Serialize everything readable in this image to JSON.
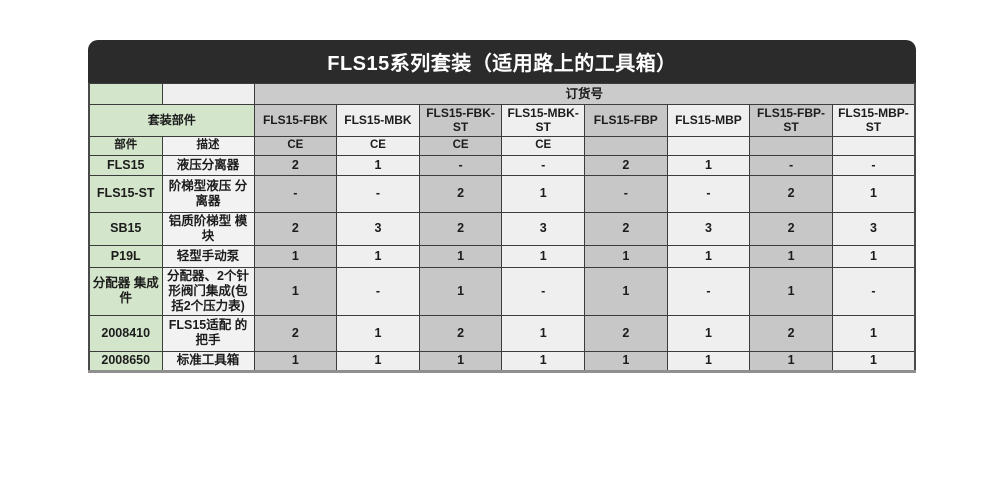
{
  "title": "FLS15系列套装（适用路上的工具箱）",
  "header": {
    "order_number_label": "订货号",
    "kit_parts_label": "套装部件",
    "part_label": "部件",
    "desc_label": "描述"
  },
  "columns": [
    "FLS15-FBK",
    "FLS15-MBK",
    "FLS15-FBK-ST",
    "FLS15-MBK-ST",
    "FLS15-FBP",
    "FLS15-MBP",
    "FLS15-FBP-ST",
    "FLS15-MBP-ST"
  ],
  "ce_row": [
    "CE",
    "CE",
    "CE",
    "CE",
    "",
    "",
    "",
    ""
  ],
  "rows": [
    {
      "part": "FLS15",
      "desc": "液压分离器",
      "values": [
        "2",
        "1",
        "-",
        "-",
        "2",
        "1",
        "-",
        "-"
      ]
    },
    {
      "part": "FLS15-ST",
      "desc": "阶梯型液压 分离器",
      "values": [
        "-",
        "-",
        "2",
        "1",
        "-",
        "-",
        "2",
        "1"
      ]
    },
    {
      "part": "SB15",
      "desc": "铝质阶梯型 模块",
      "values": [
        "2",
        "3",
        "2",
        "3",
        "2",
        "3",
        "2",
        "3"
      ]
    },
    {
      "part": "P19L",
      "desc": "轻型手动泵",
      "values": [
        "1",
        "1",
        "1",
        "1",
        "1",
        "1",
        "1",
        "1"
      ]
    },
    {
      "part": "分配器 集成件",
      "desc": "分配器、2个针 形阀门集成(包 括2个压力表)",
      "values": [
        "1",
        "-",
        "1",
        "-",
        "1",
        "-",
        "1",
        "-"
      ]
    },
    {
      "part": "2008410",
      "desc": "FLS15适配 的把手",
      "values": [
        "2",
        "1",
        "2",
        "1",
        "2",
        "1",
        "2",
        "1"
      ]
    },
    {
      "part": "2008650",
      "desc": "标准工具箱",
      "values": [
        "1",
        "1",
        "1",
        "1",
        "1",
        "1",
        "1",
        "1"
      ]
    }
  ],
  "colors": {
    "title_bg": "#2b2b2b",
    "green": "#d3e5ca",
    "gray_dark": "#c7c7c7",
    "gray_light": "#efefef",
    "order_row": "#cbcbcb",
    "desc_col": "#f2f2f2"
  }
}
